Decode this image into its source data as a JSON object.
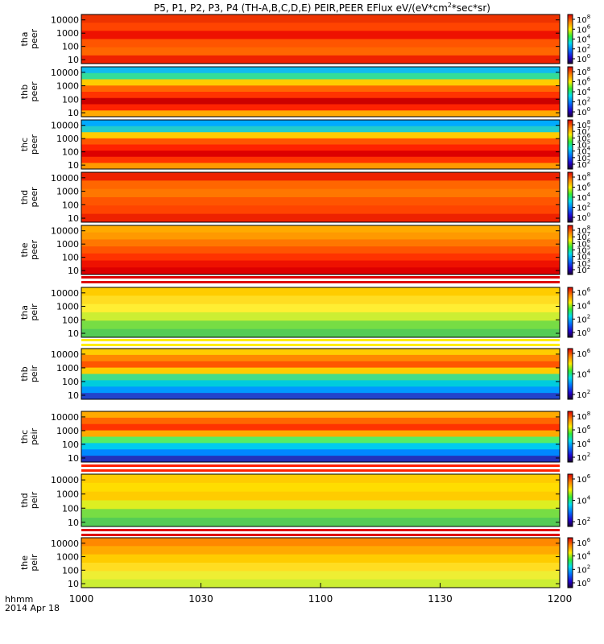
{
  "chart_data": {
    "type": "heatmap",
    "title_main": "P5, P1, P2, P3, P4 (TH-A,B,C,D,E) PEIR,PEER EFlux eV/(eV*cm",
    "title_sup": "2",
    "title_tail": "*sec*sr)",
    "xlabel_line1": "hhmm",
    "xlabel_line2": "2014 Apr 18",
    "x_ticks": [
      "1000",
      "1030",
      "1100",
      "1130",
      "1200"
    ],
    "y_ticks": [
      "10000",
      "1000",
      "100",
      "10"
    ],
    "panels": [
      {
        "probe": "tha",
        "species": "peer",
        "cbar_ticks": [
          "10^8",
          "10^6",
          "10^4",
          "10^2",
          "10^0"
        ]
      },
      {
        "probe": "thb",
        "species": "peer",
        "cbar_ticks": [
          "10^8",
          "10^6",
          "10^4",
          "10^2",
          "10^0"
        ]
      },
      {
        "probe": "thc",
        "species": "peer",
        "cbar_ticks": [
          "10^8",
          "10^7",
          "10^6",
          "10^5",
          "10^4",
          "10^3",
          "10^2"
        ]
      },
      {
        "probe": "thd",
        "species": "peer",
        "cbar_ticks": [
          "10^8",
          "10^6",
          "10^4",
          "10^2",
          "10^0"
        ]
      },
      {
        "probe": "the",
        "species": "peer",
        "cbar_ticks": [
          "10^8",
          "10^7",
          "10^6",
          "10^5",
          "10^4",
          "10^3",
          "10^2"
        ]
      },
      {
        "probe": "tha",
        "species": "peir",
        "cbar_ticks": [
          "10^6",
          "10^4",
          "10^2",
          "10^0"
        ]
      },
      {
        "probe": "thb",
        "species": "peir",
        "cbar_ticks": [
          "10^6",
          "10^4",
          "10^2"
        ]
      },
      {
        "probe": "thc",
        "species": "peir",
        "cbar_ticks": [
          "10^8",
          "10^6",
          "10^4",
          "10^2"
        ]
      },
      {
        "probe": "thd",
        "species": "peir",
        "cbar_ticks": [
          "10^6",
          "10^4",
          "10^2"
        ]
      },
      {
        "probe": "the",
        "species": "peir",
        "cbar_ticks": [
          "10^6",
          "10^4",
          "10^2",
          "10^0"
        ]
      }
    ]
  }
}
